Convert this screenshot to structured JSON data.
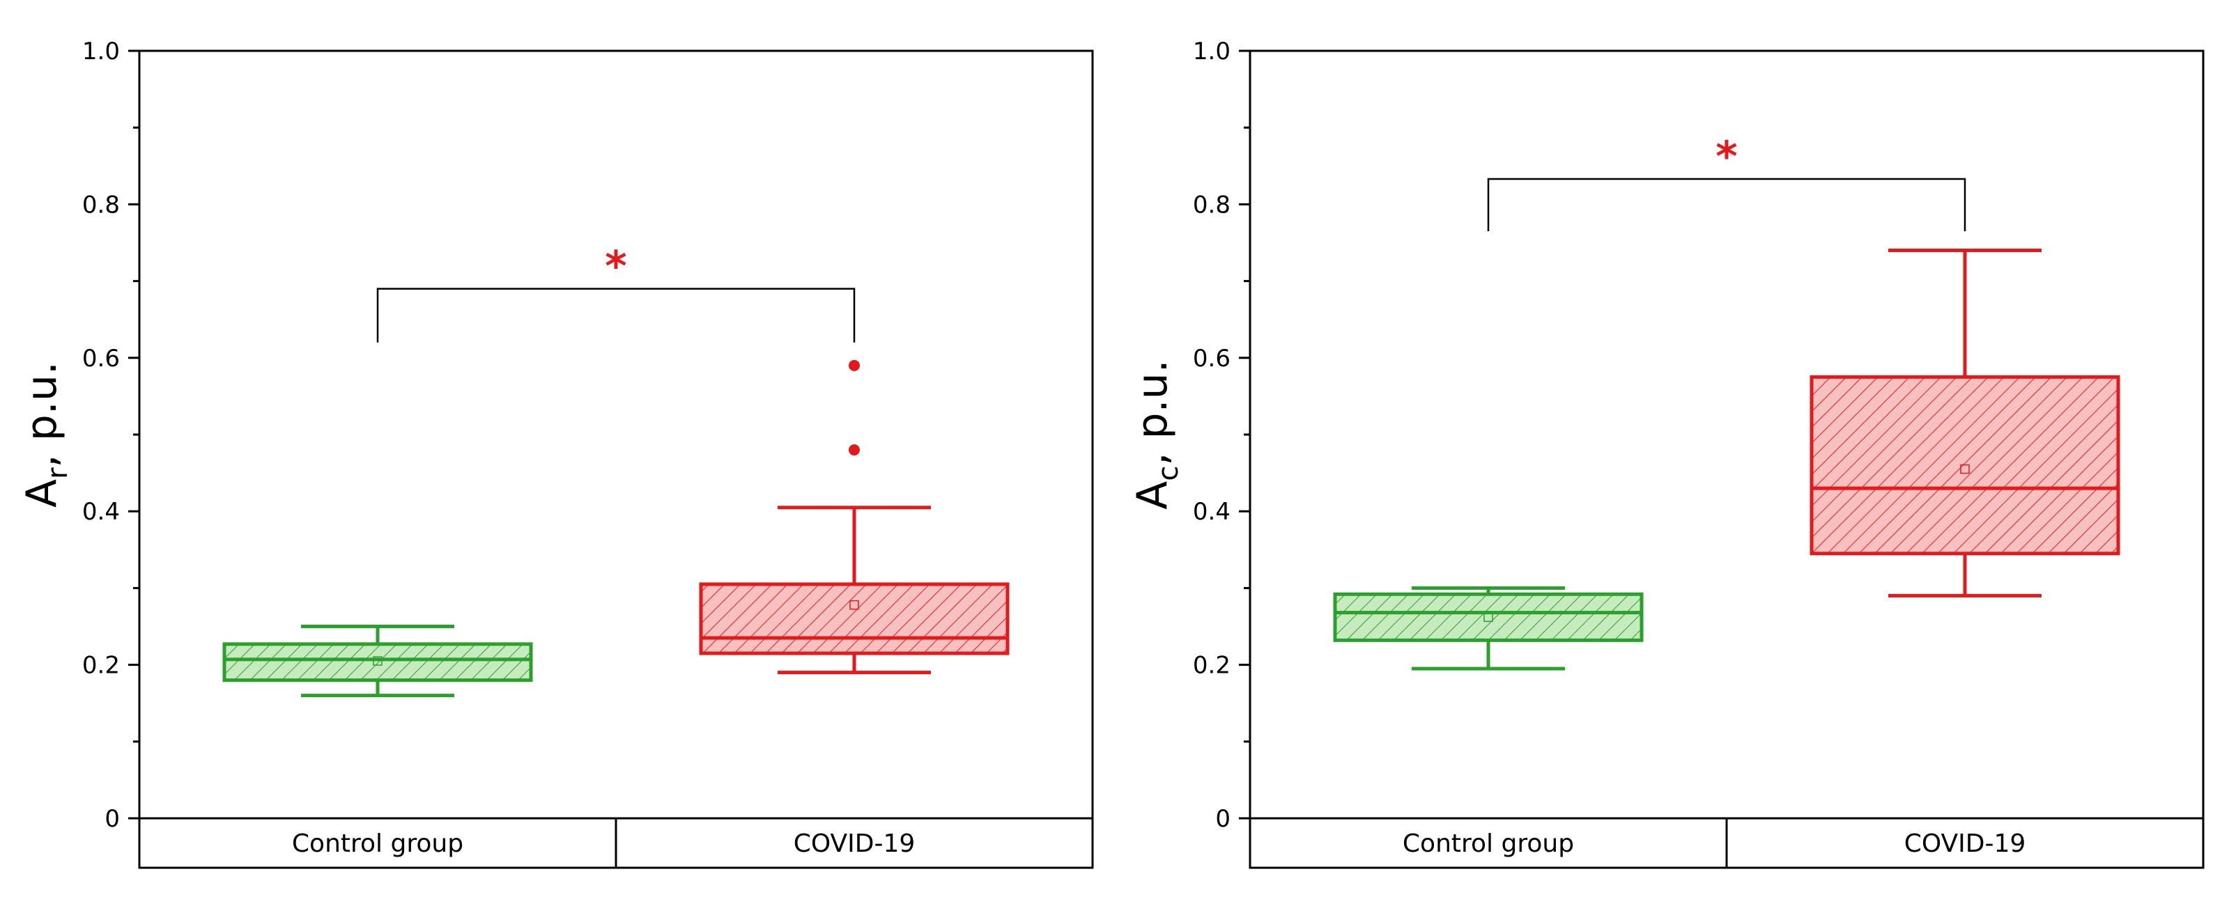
{
  "colors": {
    "control": "#2ca02c",
    "control_fill": "#c6ebbe",
    "covid": "#e31a1c",
    "covid_fill": "#f9c0c0",
    "significance": "#e31a1c",
    "axis": "#000000"
  },
  "chart_data": [
    {
      "type": "box",
      "ylabel_main": "A",
      "ylabel_sub": "r",
      "ylabel_rest": ", p.u.",
      "ylim": [
        0,
        1.0
      ],
      "yticks": [
        0,
        0.2,
        0.4,
        0.6,
        0.8,
        1.0
      ],
      "ytick_labels": [
        "0",
        "0.2",
        "0.4",
        "0.6",
        "0.8",
        "1.0"
      ],
      "categories": [
        "Control group",
        "COVID-19"
      ],
      "boxes": [
        {
          "name": "Control group",
          "whisker_low": 0.16,
          "q1": 0.18,
          "median": 0.207,
          "q3": 0.227,
          "whisker_high": 0.25,
          "mean": 0.205,
          "outliers": []
        },
        {
          "name": "COVID-19",
          "whisker_low": 0.19,
          "q1": 0.215,
          "median": 0.235,
          "q3": 0.305,
          "whisker_high": 0.405,
          "mean": 0.278,
          "outliers": [
            0.48,
            0.59
          ]
        }
      ],
      "significance": {
        "label": "*",
        "bracket_top": 0.69,
        "left_end": 0.62,
        "right_end": 0.62
      }
    },
    {
      "type": "box",
      "ylabel_main": "A",
      "ylabel_sub": "c",
      "ylabel_rest": ", p.u.",
      "ylim": [
        0,
        1.0
      ],
      "yticks": [
        0,
        0.2,
        0.4,
        0.6,
        0.8,
        1.0
      ],
      "ytick_labels": [
        "0",
        "0.2",
        "0.4",
        "0.6",
        "0.8",
        "1.0"
      ],
      "categories": [
        "Control group",
        "COVID-19"
      ],
      "boxes": [
        {
          "name": "Control group",
          "whisker_low": 0.195,
          "q1": 0.232,
          "median": 0.268,
          "q3": 0.292,
          "whisker_high": 0.3,
          "mean": 0.262,
          "outliers": []
        },
        {
          "name": "COVID-19",
          "whisker_low": 0.29,
          "q1": 0.345,
          "median": 0.43,
          "q3": 0.575,
          "whisker_high": 0.74,
          "mean": 0.455,
          "outliers": []
        }
      ],
      "significance": {
        "label": "*",
        "bracket_top": 0.833,
        "left_end": 0.765,
        "right_end": 0.765
      }
    }
  ]
}
